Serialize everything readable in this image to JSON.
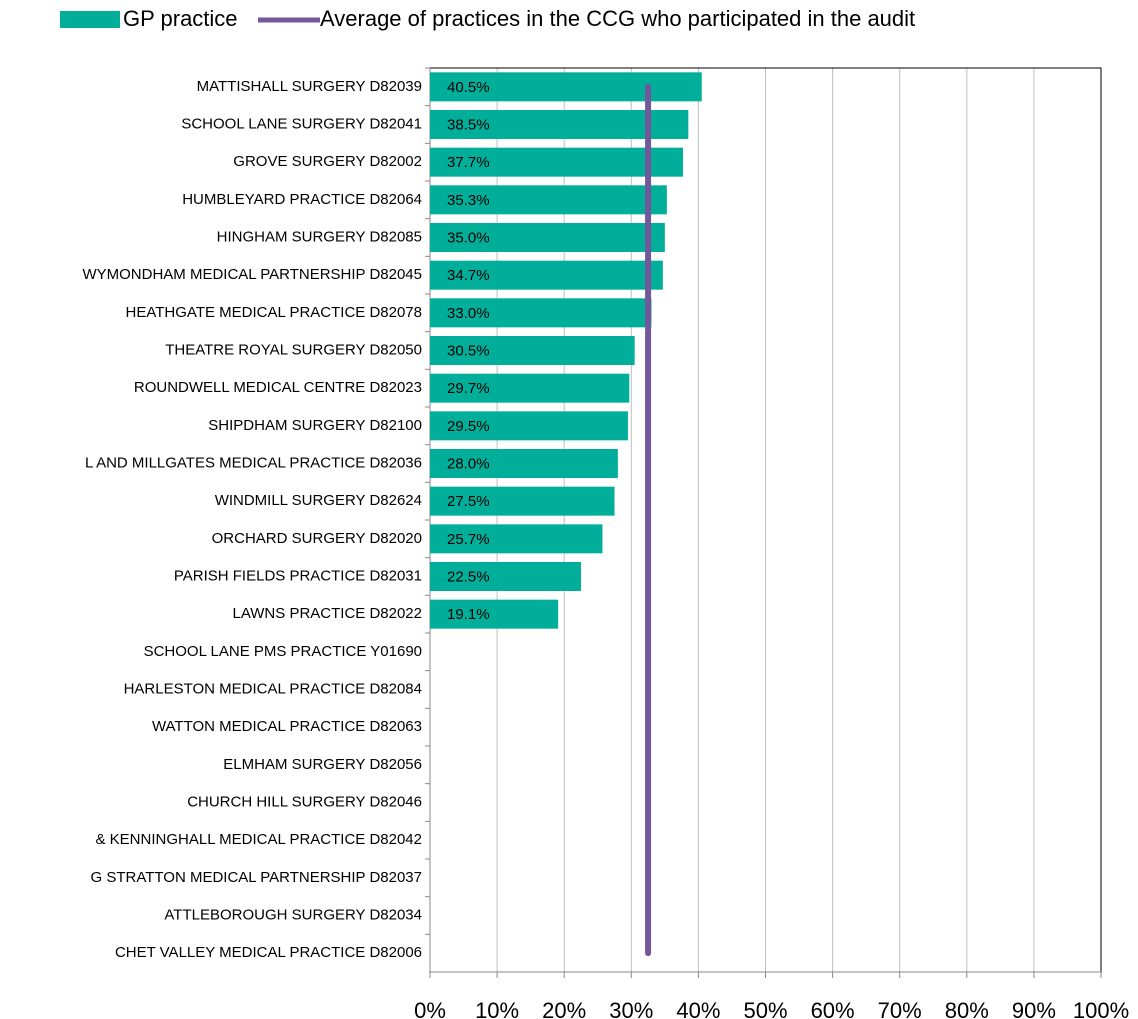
{
  "chart_data": {
    "type": "bar",
    "orientation": "horizontal",
    "categories": [
      "MATTISHALL SURGERY D82039",
      "SCHOOL LANE SURGERY D82041",
      "GROVE SURGERY D82002",
      "HUMBLEYARD PRACTICE D82064",
      "HINGHAM SURGERY D82085",
      "WYMONDHAM MEDICAL PARTNERSHIP D82045",
      "HEATHGATE MEDICAL PRACTICE D82078",
      "THEATRE ROYAL SURGERY D82050",
      "ROUNDWELL MEDICAL CENTRE D82023",
      "SHIPDHAM SURGERY D82100",
      "L AND MILLGATES MEDICAL PRACTICE D82036",
      "WINDMILL SURGERY D82624",
      "ORCHARD SURGERY D82020",
      "PARISH FIELDS PRACTICE D82031",
      "LAWNS PRACTICE D82022",
      "SCHOOL LANE PMS PRACTICE Y01690",
      "HARLESTON MEDICAL PRACTICE D82084",
      "WATTON MEDICAL PRACTICE D82063",
      "ELMHAM SURGERY D82056",
      "CHURCH HILL SURGERY D82046",
      "& KENNINGHALL MEDICAL PRACTICE D82042",
      "G STRATTON MEDICAL PARTNERSHIP D82037",
      "ATTLEBOROUGH SURGERY D82034",
      "CHET VALLEY MEDICAL PRACTICE D82006"
    ],
    "series": [
      {
        "name": "GP practice",
        "color": "#00ae9a",
        "values": [
          40.5,
          38.5,
          37.7,
          35.3,
          35.0,
          34.7,
          33.0,
          30.5,
          29.7,
          29.5,
          28.0,
          27.5,
          25.7,
          22.5,
          19.1,
          null,
          null,
          null,
          null,
          null,
          null,
          null,
          null,
          null
        ],
        "value_labels": [
          "40.5%",
          "38.5%",
          "37.7%",
          "35.3%",
          "35.0%",
          "34.7%",
          "33.0%",
          "30.5%",
          "29.7%",
          "29.5%",
          "28.0%",
          "27.5%",
          "25.7%",
          "22.5%",
          "19.1%",
          null,
          null,
          null,
          null,
          null,
          null,
          null,
          null,
          null
        ]
      }
    ],
    "reference_line": {
      "name": "Average of practices in the CCG who participated in the audit",
      "color": "#72589a",
      "value": 32.5
    },
    "xlim": [
      0,
      100
    ],
    "xticks": [
      {
        "value": 0,
        "label": "0%"
      },
      {
        "value": 10,
        "label": "10%"
      },
      {
        "value": 20,
        "label": "20%"
      },
      {
        "value": 30,
        "label": "30%"
      },
      {
        "value": 40,
        "label": "40%"
      },
      {
        "value": 50,
        "label": "50%"
      },
      {
        "value": 60,
        "label": "60%"
      },
      {
        "value": 70,
        "label": "70%"
      },
      {
        "value": 80,
        "label": "80%"
      },
      {
        "value": 90,
        "label": "90%"
      },
      {
        "value": 100,
        "label": "100%"
      }
    ],
    "grid": true
  }
}
